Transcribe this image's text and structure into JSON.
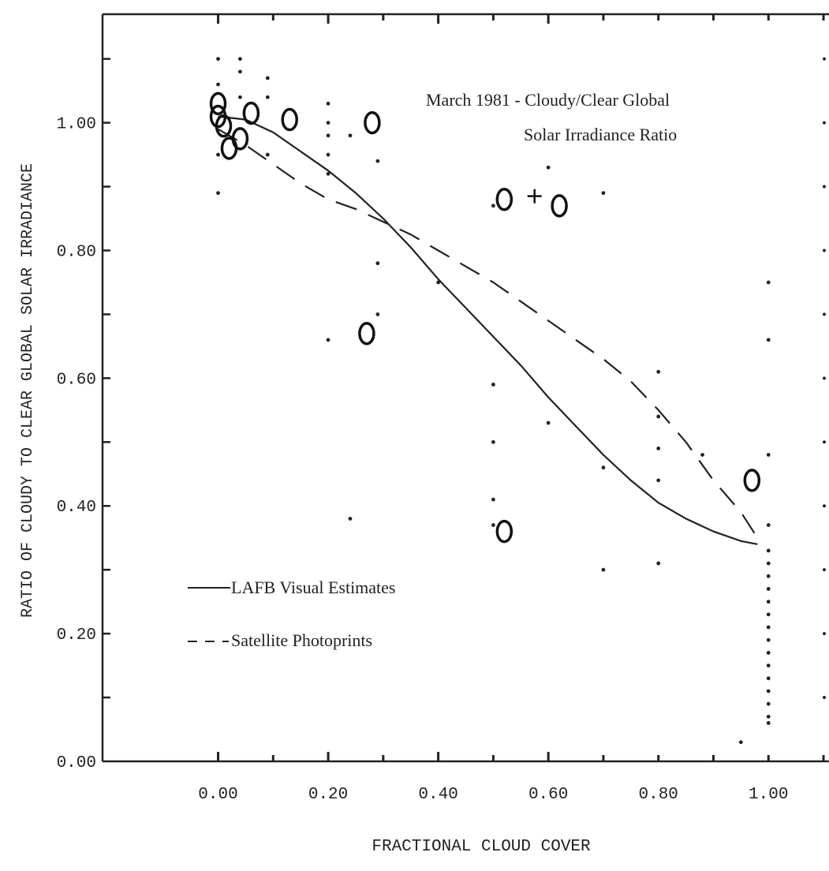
{
  "chart_data": {
    "type": "scatter",
    "title_line1": "March 1981 - Cloudy/Clear Global",
    "title_line2": "Solar Irradiance Ratio",
    "xlabel": "FRACTIONAL CLOUD COVER",
    "ylabel": "RATIO OF CLOUDY TO CLEAR GLOBAL SOLAR IRRADIANCE",
    "xlim": [
      -0.21,
      1.11
    ],
    "ylim": [
      0.0,
      1.17
    ],
    "x_ticks": [
      {
        "v": 0.0,
        "label": "0.00"
      },
      {
        "v": 0.2,
        "label": "0.20"
      },
      {
        "v": 0.4,
        "label": "0.40"
      },
      {
        "v": 0.6,
        "label": "0.60"
      },
      {
        "v": 0.8,
        "label": "0.80"
      },
      {
        "v": 1.0,
        "label": "1.00"
      }
    ],
    "y_ticks": [
      {
        "v": 0.0,
        "label": "0.00"
      },
      {
        "v": 0.2,
        "label": "0.20"
      },
      {
        "v": 0.4,
        "label": "0.40"
      },
      {
        "v": 0.6,
        "label": "0.60"
      },
      {
        "v": 0.8,
        "label": "0.80"
      },
      {
        "v": 1.0,
        "label": "1.00"
      }
    ],
    "legend": {
      "position": "bottom-left",
      "entries": [
        {
          "label": "LAFB Visual Estimates",
          "style": "solid"
        },
        {
          "label": "Satellite Photoprints",
          "style": "dashed"
        }
      ]
    },
    "series": [
      {
        "name": "LAFB Visual Estimates",
        "style": "solid",
        "points": [
          [
            0.0,
            1.01
          ],
          [
            0.05,
            1.005
          ],
          [
            0.1,
            0.985
          ],
          [
            0.15,
            0.955
          ],
          [
            0.2,
            0.925
          ],
          [
            0.25,
            0.89
          ],
          [
            0.3,
            0.85
          ],
          [
            0.35,
            0.805
          ],
          [
            0.4,
            0.755
          ],
          [
            0.45,
            0.71
          ],
          [
            0.5,
            0.665
          ],
          [
            0.55,
            0.62
          ],
          [
            0.6,
            0.57
          ],
          [
            0.65,
            0.525
          ],
          [
            0.7,
            0.48
          ],
          [
            0.75,
            0.44
          ],
          [
            0.8,
            0.405
          ],
          [
            0.85,
            0.38
          ],
          [
            0.9,
            0.36
          ],
          [
            0.95,
            0.345
          ],
          [
            0.98,
            0.34
          ]
        ]
      },
      {
        "name": "Satellite Photoprints",
        "style": "dashed",
        "points": [
          [
            0.0,
            0.99
          ],
          [
            0.05,
            0.965
          ],
          [
            0.1,
            0.935
          ],
          [
            0.15,
            0.905
          ],
          [
            0.2,
            0.88
          ],
          [
            0.25,
            0.865
          ],
          [
            0.3,
            0.845
          ],
          [
            0.35,
            0.825
          ],
          [
            0.4,
            0.8
          ],
          [
            0.45,
            0.775
          ],
          [
            0.5,
            0.75
          ],
          [
            0.55,
            0.72
          ],
          [
            0.6,
            0.69
          ],
          [
            0.65,
            0.66
          ],
          [
            0.7,
            0.63
          ],
          [
            0.75,
            0.595
          ],
          [
            0.8,
            0.55
          ],
          [
            0.85,
            0.5
          ],
          [
            0.9,
            0.44
          ],
          [
            0.95,
            0.39
          ],
          [
            0.98,
            0.35
          ]
        ]
      }
    ],
    "scatter_o": [
      [
        0.0,
        1.03
      ],
      [
        0.0,
        1.01
      ],
      [
        0.01,
        0.995
      ],
      [
        0.02,
        0.96
      ],
      [
        0.04,
        0.975
      ],
      [
        0.06,
        1.015
      ],
      [
        0.13,
        1.005
      ],
      [
        0.28,
        1.0
      ],
      [
        0.27,
        0.67
      ],
      [
        0.52,
        0.88
      ],
      [
        0.62,
        0.87
      ],
      [
        0.52,
        0.36
      ],
      [
        0.97,
        0.44
      ]
    ],
    "scatter_plus": [
      [
        0.575,
        0.885
      ]
    ],
    "scatter_dots": [
      [
        0.0,
        1.1
      ],
      [
        0.0,
        1.06
      ],
      [
        0.0,
        0.95
      ],
      [
        0.0,
        0.89
      ],
      [
        0.04,
        1.1
      ],
      [
        0.04,
        1.08
      ],
      [
        0.04,
        1.04
      ],
      [
        0.09,
        1.07
      ],
      [
        0.09,
        1.04
      ],
      [
        0.09,
        0.95
      ],
      [
        0.2,
        1.03
      ],
      [
        0.2,
        1.0
      ],
      [
        0.2,
        0.98
      ],
      [
        0.2,
        0.95
      ],
      [
        0.2,
        0.92
      ],
      [
        0.2,
        0.66
      ],
      [
        0.24,
        0.98
      ],
      [
        0.24,
        0.38
      ],
      [
        0.29,
        0.94
      ],
      [
        0.29,
        0.78
      ],
      [
        0.29,
        0.7
      ],
      [
        0.4,
        0.75
      ],
      [
        0.5,
        0.87
      ],
      [
        0.5,
        0.59
      ],
      [
        0.5,
        0.5
      ],
      [
        0.5,
        0.41
      ],
      [
        0.5,
        0.37
      ],
      [
        0.6,
        0.93
      ],
      [
        0.6,
        0.53
      ],
      [
        0.7,
        0.89
      ],
      [
        0.7,
        0.46
      ],
      [
        0.7,
        0.3
      ],
      [
        0.8,
        0.61
      ],
      [
        0.8,
        0.54
      ],
      [
        0.8,
        0.49
      ],
      [
        0.8,
        0.44
      ],
      [
        0.8,
        0.31
      ],
      [
        0.88,
        0.48
      ],
      [
        0.95,
        0.03
      ],
      [
        1.0,
        0.75
      ],
      [
        1.0,
        0.66
      ],
      [
        1.0,
        0.48
      ],
      [
        1.0,
        0.37
      ],
      [
        1.0,
        0.33
      ],
      [
        1.0,
        0.31
      ],
      [
        1.0,
        0.29
      ],
      [
        1.0,
        0.27
      ],
      [
        1.0,
        0.25
      ],
      [
        1.0,
        0.23
      ],
      [
        1.0,
        0.21
      ],
      [
        1.0,
        0.19
      ],
      [
        1.0,
        0.17
      ],
      [
        1.0,
        0.15
      ],
      [
        1.0,
        0.13
      ],
      [
        1.0,
        0.11
      ],
      [
        1.0,
        0.09
      ],
      [
        1.0,
        0.07
      ],
      [
        1.0,
        0.06
      ]
    ],
    "grid": false
  }
}
